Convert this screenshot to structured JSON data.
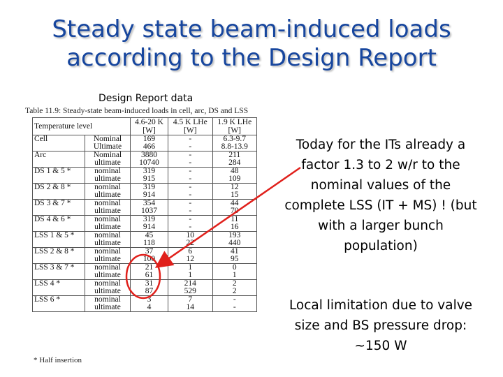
{
  "title_line1": "Steady state beam-induced loads",
  "title_line2": "according to the Design Report",
  "design_report_label": "Design Report data",
  "table_caption": "Table 11.9:   Steady-state beam-induced loads in cell, arc, DS and LSS",
  "table_header": {
    "col1": "Temperature level",
    "col2_line1": "4.6-20 K",
    "col2_line2": "[W]",
    "col3_line1": "4.5 K LHe",
    "col3_line2": "[W]",
    "col4_line1": "1.9 K LHe",
    "col4_line2": "[W]"
  },
  "table_rows": [
    {
      "label": "Cell",
      "sub1": "Nominal",
      "sub2": "Ultimate",
      "a1": "169",
      "a2": "466",
      "b1": "-",
      "b2": "-",
      "c1": "6.3-9.7",
      "c2": "8.8-13.9"
    },
    {
      "label": "Arc",
      "sub1": "Nominal",
      "sub2": "ultimate",
      "a1": "3880",
      "a2": "10740",
      "b1": "-",
      "b2": "-",
      "c1": "211",
      "c2": "284"
    },
    {
      "label": "DS 1 & 5 *",
      "sub1": "nominal",
      "sub2": "ultimate",
      "a1": "319",
      "a2": "915",
      "b1": "-",
      "b2": "-",
      "c1": "48",
      "c2": "109"
    },
    {
      "label": "DS 2 & 8 *",
      "sub1": "nominal",
      "sub2": "ultimate",
      "a1": "319",
      "a2": "914",
      "b1": "-",
      "b2": "-",
      "c1": "12",
      "c2": "15"
    },
    {
      "label": "DS 3 & 7 *",
      "sub1": "nominal",
      "sub2": "ultimate",
      "a1": "354",
      "a2": "1037",
      "b1": "-",
      "b2": "-",
      "c1": "44",
      "c2": "70"
    },
    {
      "label": "DS 4 & 6 *",
      "sub1": "nominal",
      "sub2": "ultimate",
      "a1": "319",
      "a2": "914",
      "b1": "-",
      "b2": "-",
      "c1": "11",
      "c2": "16"
    },
    {
      "label": "LSS 1 & 5 *",
      "sub1": "nominal",
      "sub2": "ultimate",
      "a1": "45",
      "a2": "118",
      "b1": "10",
      "b2": "22",
      "c1": "193",
      "c2": "440"
    },
    {
      "label": "LSS 2 & 8 *",
      "sub1": "nominal",
      "sub2": "ultimate",
      "a1": "37",
      "a2": "100",
      "b1": "6",
      "b2": "12",
      "c1": "41",
      "c2": "95"
    },
    {
      "label": "LSS 3 & 7 *",
      "sub1": "nominal",
      "sub2": "ultimate",
      "a1": "21",
      "a2": "61",
      "b1": "1",
      "b2": "1",
      "c1": "0",
      "c2": "1"
    },
    {
      "label": "LSS 4 *",
      "sub1": "nominal",
      "sub2": "ultimate",
      "a1": "31",
      "a2": "87",
      "b1": "214",
      "b2": "529",
      "c1": "2",
      "c2": "2"
    },
    {
      "label": "LSS 6 *",
      "sub1": "nominal",
      "sub2": "ultimate",
      "a1": "3",
      "a2": "4",
      "b1": "7",
      "b2": "14",
      "c1": "-",
      "c2": "-"
    }
  ],
  "footnote": "*   Half insertion",
  "note1": "Today for the ITs already a factor 1.3 to 2 w/r to the nominal values of the complete LSS (IT + MS) ! (but with a larger bunch population)",
  "note2": "Local limitation due to valve size and BS pressure drop: ~150 W",
  "colors": {
    "title": "#17469e",
    "annotation": "#e0201b"
  }
}
